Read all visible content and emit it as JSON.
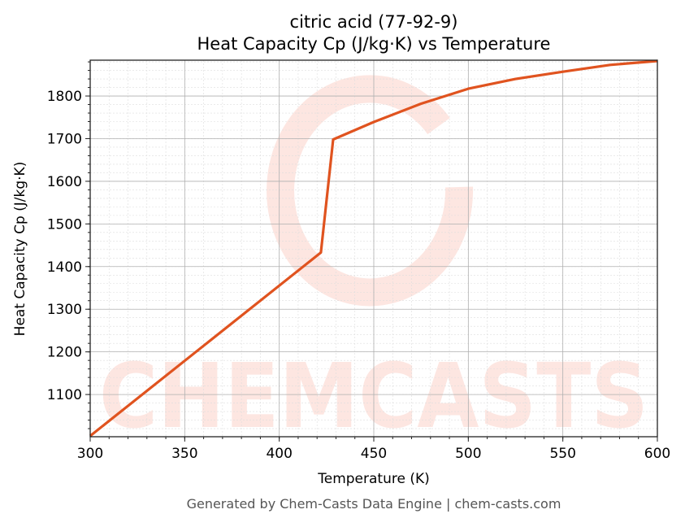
{
  "chart_data": {
    "type": "line",
    "title": "citric acid (77-92-9)",
    "subtitle": "Heat Capacity Cp (J/kg·K) vs Temperature",
    "xlabel": "Temperature (K)",
    "ylabel": "Heat Capacity Cp (J/kg·K)",
    "xlim": [
      300,
      600
    ],
    "ylim": [
      1001,
      1884
    ],
    "xticks": [
      300,
      350,
      400,
      450,
      500,
      550,
      600
    ],
    "yticks": [
      1100,
      1200,
      1300,
      1400,
      1500,
      1600,
      1700,
      1800
    ],
    "grid": true,
    "series": [
      {
        "name": "Cp",
        "color": "#e0531f",
        "x": [
          300,
          422,
          428.5,
          450,
          475,
          500,
          525,
          550,
          575,
          600
        ],
        "y": [
          1003,
          1433,
          1698,
          1739,
          1782,
          1817,
          1840,
          1857,
          1873,
          1882
        ]
      }
    ],
    "watermark": "CHEMCASTS"
  },
  "footer": "Generated by Chem-Casts Data Engine | chem-casts.com"
}
